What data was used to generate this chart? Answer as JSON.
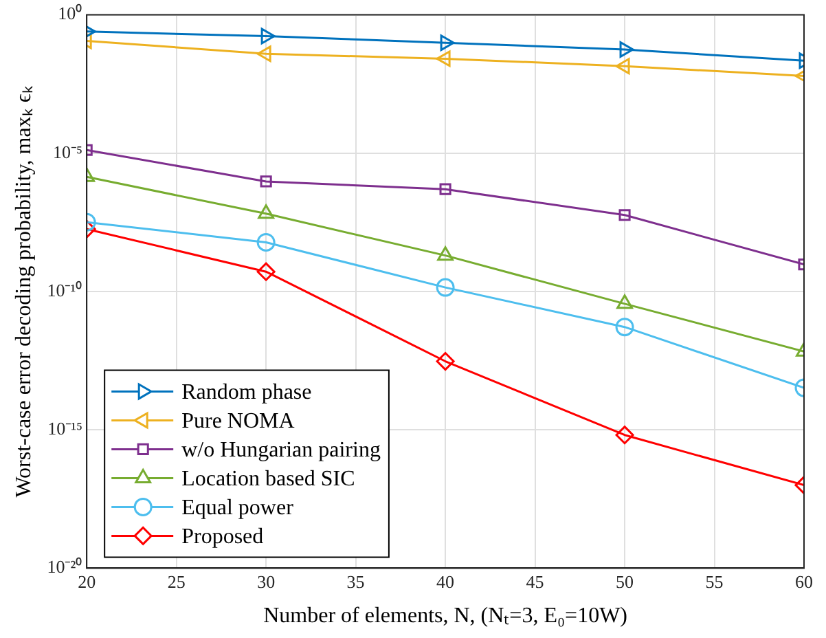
{
  "chart_data": {
    "type": "line",
    "xlabel": "Number of elements, N, (Nₜ=3, E₀=10W)",
    "ylabel": "Worst-case error decoding probability, maxₖ ϵₖ",
    "x": [
      20,
      30,
      40,
      50,
      60
    ],
    "xlim": [
      20,
      60
    ],
    "xticks": [
      20,
      25,
      30,
      35,
      40,
      45,
      50,
      55,
      60
    ],
    "ylim": [
      1e-20,
      1
    ],
    "yticks": [
      {
        "value": 1e-20,
        "label": "10⁻²⁰"
      },
      {
        "value": 1e-15,
        "label": "10⁻¹⁵"
      },
      {
        "value": 1e-10,
        "label": "10⁻¹⁰"
      },
      {
        "value": 1e-05,
        "label": "10⁻⁵"
      },
      {
        "value": 1,
        "label": "10⁰"
      }
    ],
    "log": "y",
    "grid": true,
    "legend": "bottom left",
    "line_style": "solid",
    "series": [
      {
        "name": "Random phase",
        "color": "#0072bd",
        "marker": "triangle-right",
        "values": [
          0.25,
          0.17,
          0.098,
          0.056,
          0.022
        ]
      },
      {
        "name": "Pure NOMA",
        "color": "#edb120",
        "marker": "triangle-left",
        "values": [
          0.115,
          0.039,
          0.026,
          0.014,
          0.0062
        ]
      },
      {
        "name": "w/o Hungarian pairing",
        "color": "#7e2f8e",
        "marker": "square",
        "values": [
          1.3e-05,
          9.5e-07,
          5e-07,
          5.8e-08,
          9.5e-10
        ]
      },
      {
        "name": "Location based SIC",
        "color": "#77ac30",
        "marker": "triangle",
        "values": [
          1.4e-06,
          6.5e-08,
          2e-09,
          3.6e-11,
          6.8e-13
        ]
      },
      {
        "name": "Equal power",
        "color": "#4dbeee",
        "marker": "circle",
        "values": [
          3.2e-08,
          6e-09,
          1.4e-10,
          5.2e-12,
          3.3e-14
        ]
      },
      {
        "name": "Proposed",
        "color": "#ff0000",
        "marker": "diamond",
        "values": [
          1.8e-08,
          5.2e-10,
          3e-13,
          6.5e-16,
          1e-17
        ]
      }
    ]
  }
}
